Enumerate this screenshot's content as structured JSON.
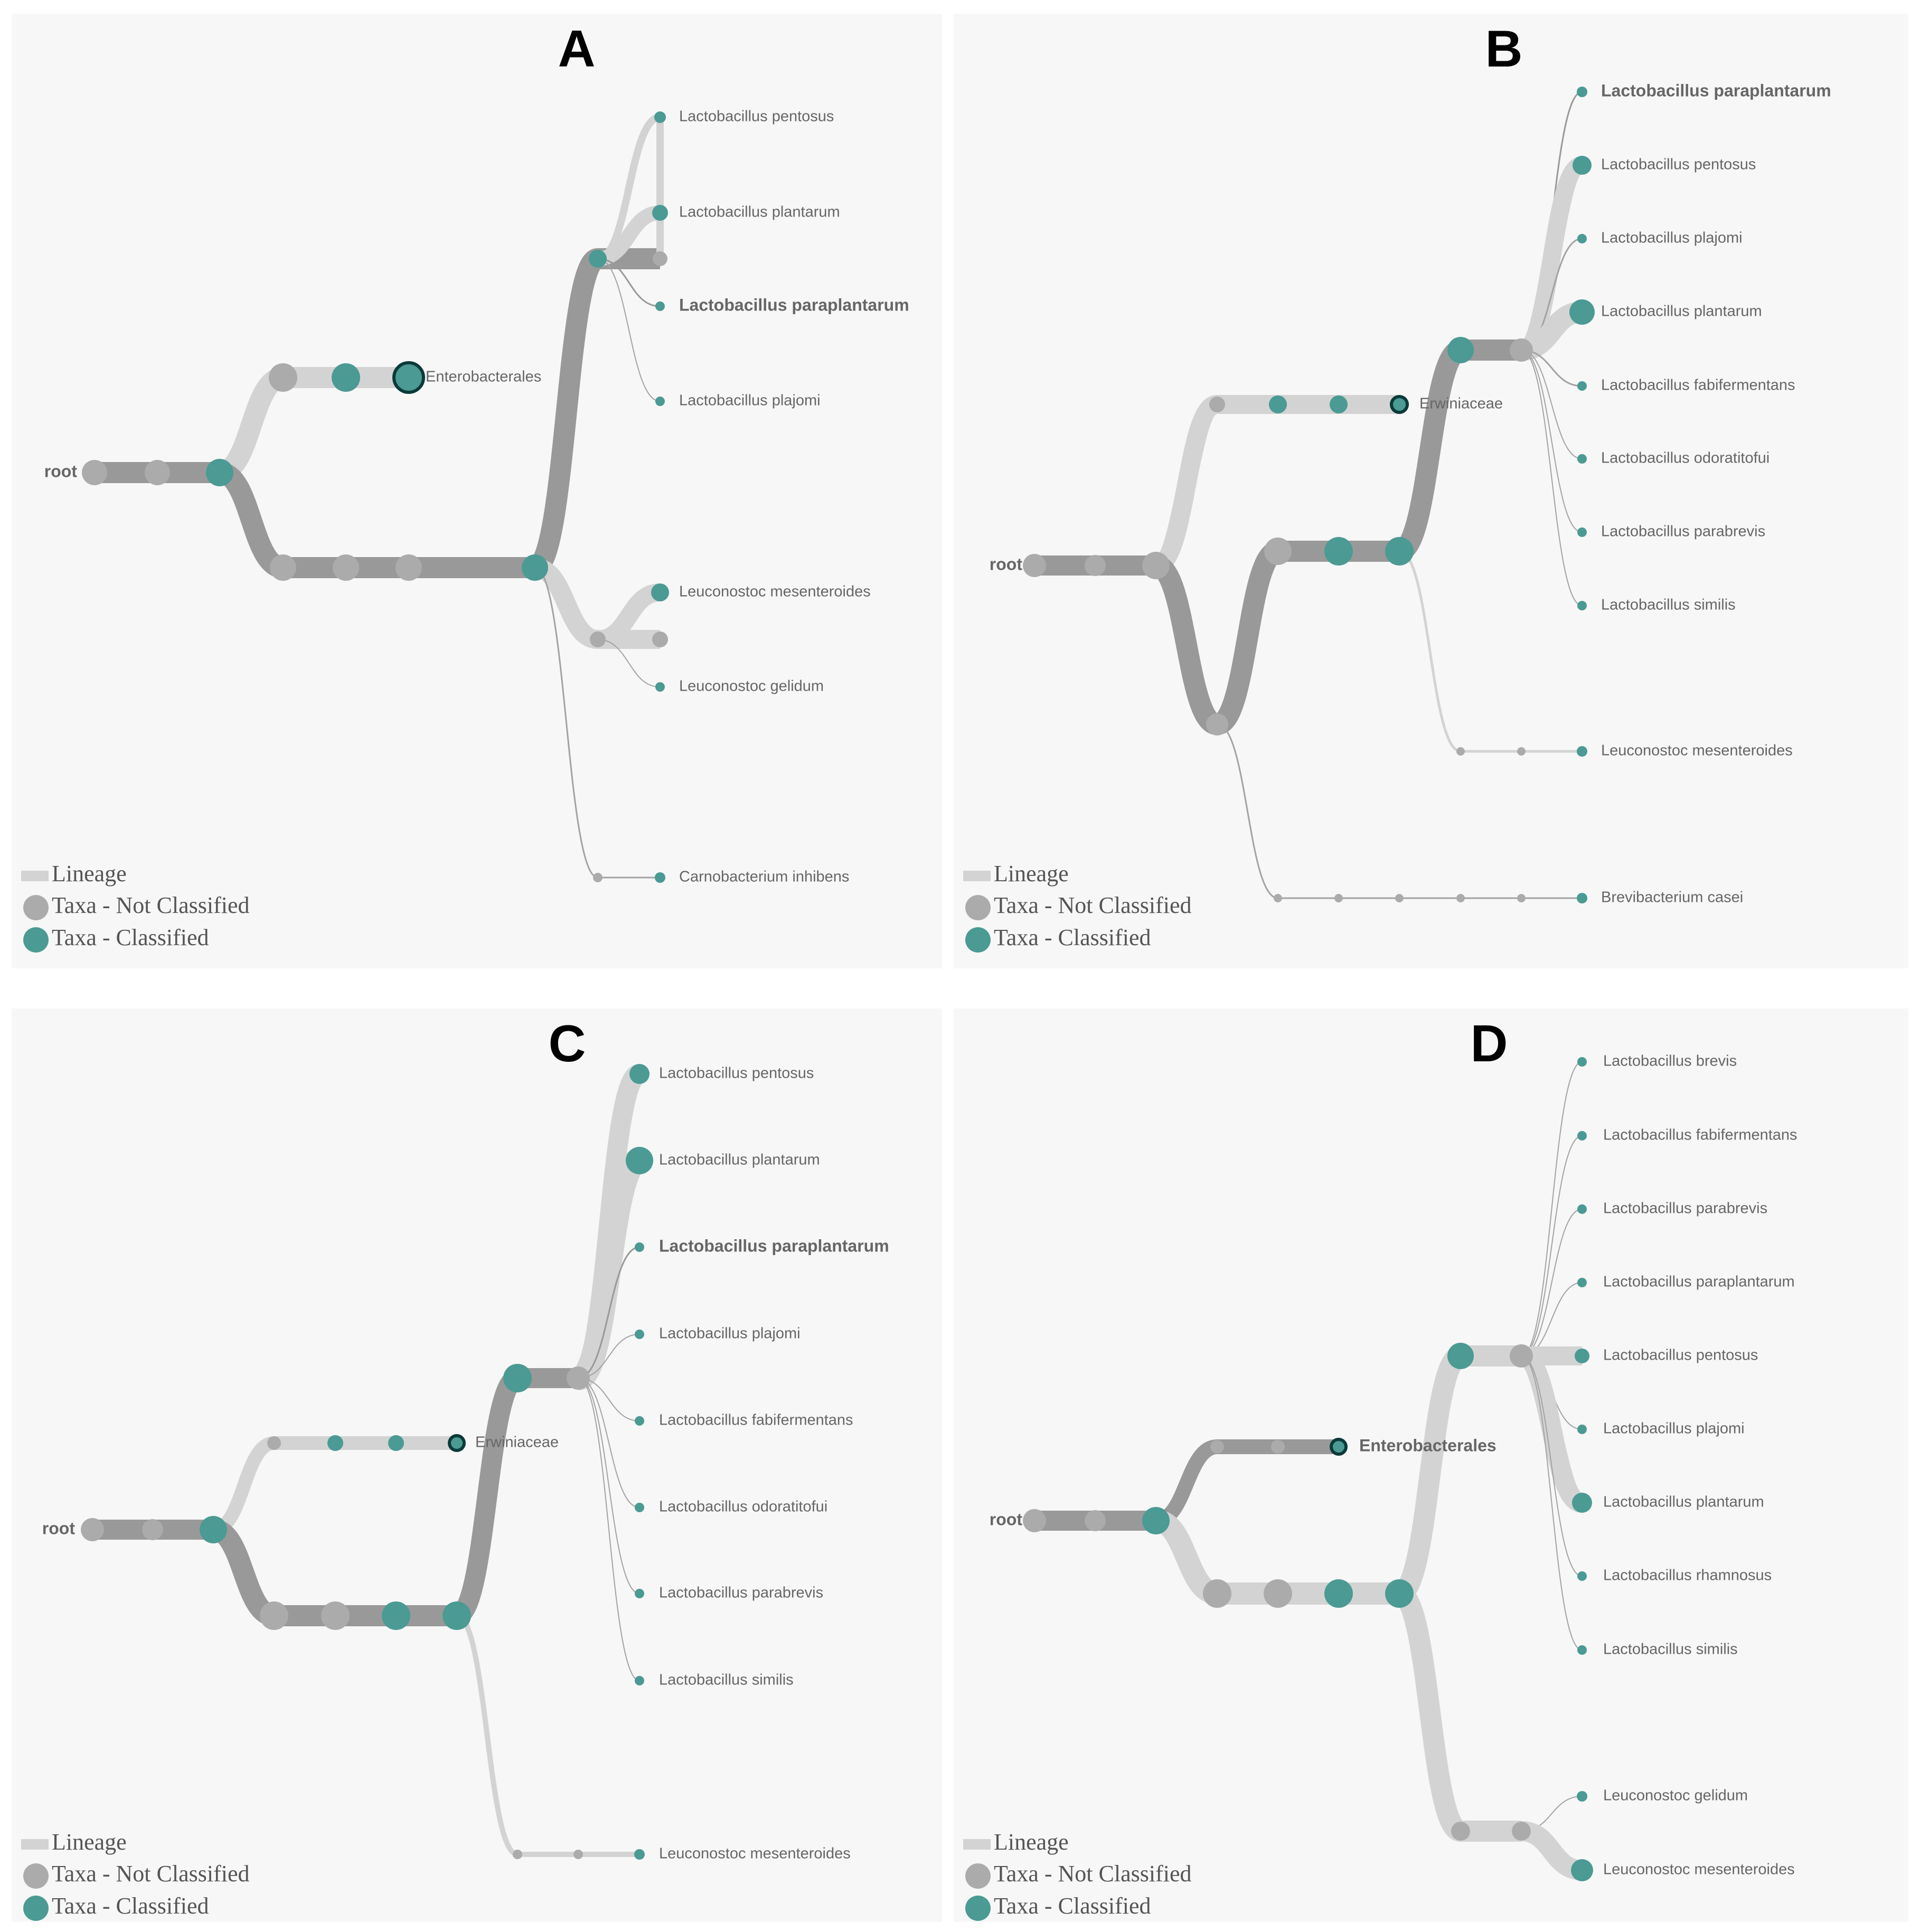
{
  "colors": {
    "background": "#f7f7f7",
    "lineage_light": "#d3d3d3",
    "lineage_dark": "#999999",
    "node_unclassified": "#ababab",
    "node_classified": "#4b9a94",
    "highlight_stroke": "#0b3a3a"
  },
  "legend": {
    "lineage": "Lineage",
    "not_classified": "Taxa - Not Classified",
    "classified": "Taxa - Classified"
  },
  "panels": [
    {
      "letter": "A",
      "root_label": "root",
      "labels": [
        {
          "text": "Enterobacterales",
          "bold": false
        },
        {
          "text": "Lactobacillus pentosus",
          "bold": false
        },
        {
          "text": "Lactobacillus plantarum",
          "bold": false
        },
        {
          "text": "Lactobacillus paraplantarum",
          "bold": true
        },
        {
          "text": "Lactobacillus plajomi",
          "bold": false
        },
        {
          "text": "Leuconostoc mesenteroides",
          "bold": false
        },
        {
          "text": "Leuconostoc gelidum",
          "bold": false
        },
        {
          "text": "Carnobacterium inhibens",
          "bold": false
        }
      ]
    },
    {
      "letter": "B",
      "root_label": "root",
      "labels": [
        {
          "text": "Erwiniaceae",
          "bold": false
        },
        {
          "text": "Lactobacillus paraplantarum",
          "bold": true
        },
        {
          "text": "Lactobacillus pentosus",
          "bold": false
        },
        {
          "text": "Lactobacillus plajomi",
          "bold": false
        },
        {
          "text": "Lactobacillus plantarum",
          "bold": false
        },
        {
          "text": "Lactobacillus fabifermentans",
          "bold": false
        },
        {
          "text": "Lactobacillus odoratitofui",
          "bold": false
        },
        {
          "text": "Lactobacillus parabrevis",
          "bold": false
        },
        {
          "text": "Lactobacillus similis",
          "bold": false
        },
        {
          "text": "Leuconostoc mesenteroides",
          "bold": false
        },
        {
          "text": "Brevibacterium casei",
          "bold": false
        }
      ]
    },
    {
      "letter": "C",
      "root_label": "root",
      "labels": [
        {
          "text": "Erwiniaceae",
          "bold": false
        },
        {
          "text": "Lactobacillus pentosus",
          "bold": false
        },
        {
          "text": "Lactobacillus plantarum",
          "bold": false
        },
        {
          "text": "Lactobacillus paraplantarum",
          "bold": true
        },
        {
          "text": "Lactobacillus plajomi",
          "bold": false
        },
        {
          "text": "Lactobacillus fabifermentans",
          "bold": false
        },
        {
          "text": "Lactobacillus odoratitofui",
          "bold": false
        },
        {
          "text": "Lactobacillus parabrevis",
          "bold": false
        },
        {
          "text": "Lactobacillus similis",
          "bold": false
        },
        {
          "text": "Leuconostoc mesenteroides",
          "bold": false
        }
      ]
    },
    {
      "letter": "D",
      "root_label": "root",
      "labels": [
        {
          "text": "Enterobacterales",
          "bold": true
        },
        {
          "text": "Lactobacillus brevis",
          "bold": false
        },
        {
          "text": "Lactobacillus fabifermentans",
          "bold": false
        },
        {
          "text": "Lactobacillus parabrevis",
          "bold": false
        },
        {
          "text": "Lactobacillus paraplantarum",
          "bold": false
        },
        {
          "text": "Lactobacillus pentosus",
          "bold": false
        },
        {
          "text": "Lactobacillus plajomi",
          "bold": false
        },
        {
          "text": "Lactobacillus plantarum",
          "bold": false
        },
        {
          "text": "Lactobacillus rhamnosus",
          "bold": false
        },
        {
          "text": "Lactobacillus similis",
          "bold": false
        },
        {
          "text": "Leuconostoc gelidum",
          "bold": false
        },
        {
          "text": "Leuconostoc mesenteroides",
          "bold": false
        }
      ]
    }
  ]
}
